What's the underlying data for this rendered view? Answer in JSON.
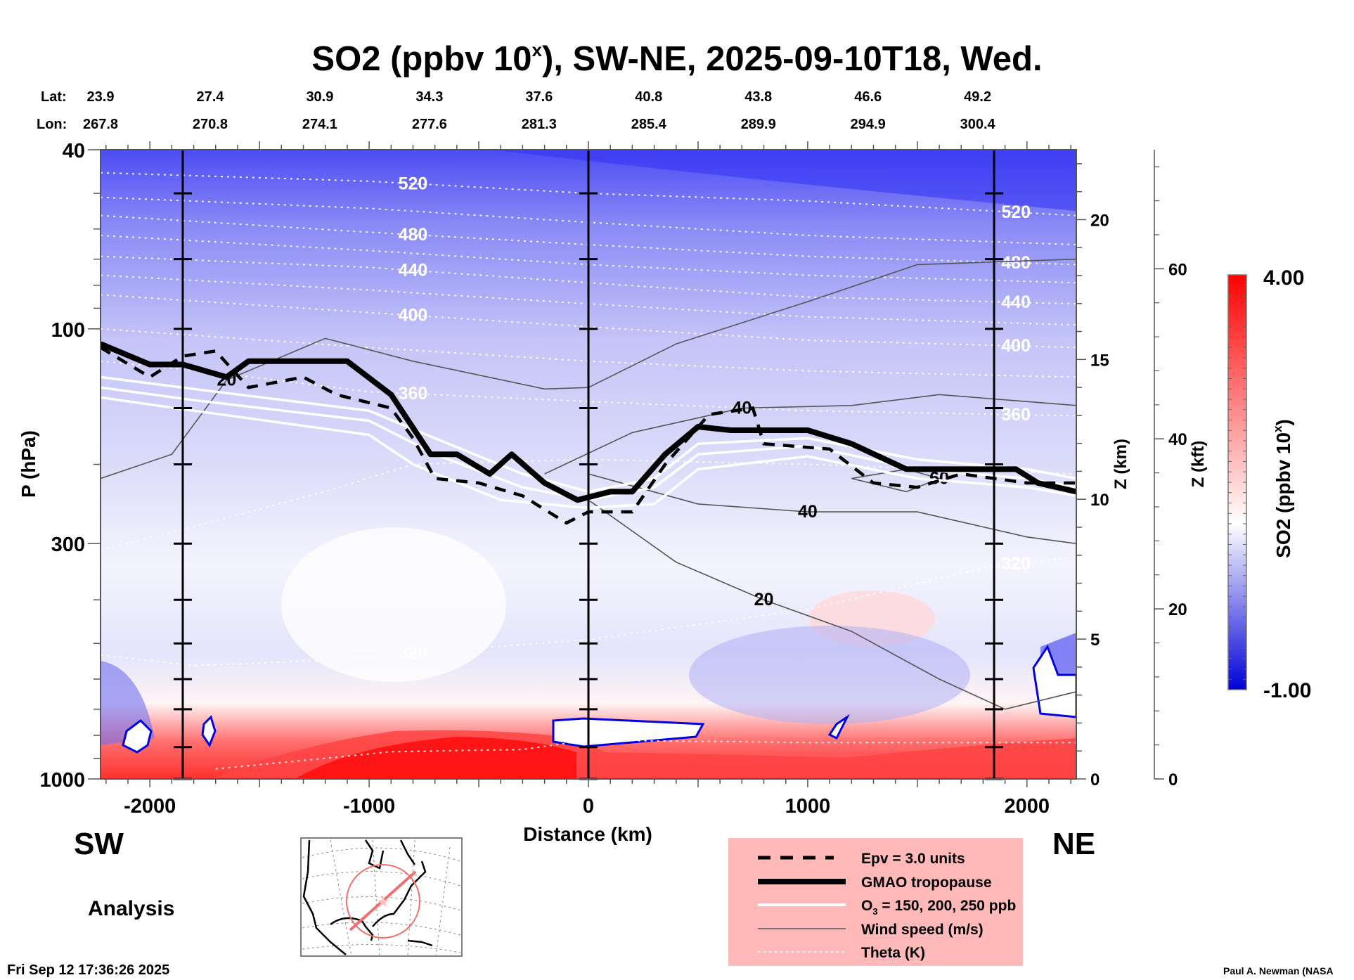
{
  "figure": {
    "title_main": "SO2 (ppbv 10",
    "title_sup": "x",
    "title_rest": "), SW-NE, 2025-09-10T18, Wed.",
    "lat_label": "Lat:",
    "lon_label": "Lon:",
    "left_direction": "SW",
    "right_direction": "NE",
    "run_type": "Analysis",
    "timestamp": "Fri Sep 12 17:36:26 2025",
    "credit": "Paul A. Newman (NASA"
  },
  "legend": {
    "background": "#ffb9b9",
    "items": [
      {
        "label": "Epv = 3.0 units",
        "style": "dashed-thick-black"
      },
      {
        "label": "GMAO tropopause",
        "style": "solid-heavy-black"
      },
      {
        "label_pre": "O",
        "label_sub": "3",
        "label_post": " = 150, 200, 250 ppb",
        "style": "solid-white"
      },
      {
        "label": "Wind speed (m/s)",
        "style": "solid-thin-gray"
      },
      {
        "label": "Theta (K)",
        "style": "dotted-white"
      }
    ]
  },
  "chart_data": {
    "type": "heatmap",
    "title": "SO2 (ppbv 10^x), SW-NE, 2025-09-10T18, Wed.",
    "xlabel": "Distance (km)",
    "ylabel": "P (hPa)",
    "y2label": "Z (km)",
    "y3label": "Z (kft)",
    "colorbar_label": "SO2 (ppbv 10^x)",
    "xlim": [
      -2225,
      2225
    ],
    "ylim": [
      1000,
      40
    ],
    "yscale": "log",
    "x_ticks": [
      -2000,
      -1000,
      0,
      1000,
      2000
    ],
    "x_tick_labels": [
      "-2000",
      "-1000",
      "0",
      "1000",
      "2000"
    ],
    "y_ticks": [
      40,
      100,
      300,
      1000
    ],
    "y_tick_labels": [
      "40",
      "100",
      "300",
      "1000"
    ],
    "z_km_ticks": [
      0,
      5,
      10,
      15,
      20
    ],
    "z_km_range": [
      0,
      22.5
    ],
    "z_kft_ticks": [
      0,
      20,
      40,
      60
    ],
    "z_kft_range": [
      0,
      74
    ],
    "colorbar": {
      "min": -1.0,
      "max": 4.0,
      "min_label": "-1.00",
      "max_label": "4.00",
      "colors": [
        "#0000d8",
        "#ffffff",
        "#ff0000"
      ],
      "levels": 40
    },
    "vertical_markers_km": [
      -1850,
      0,
      1850
    ],
    "latitudes": [
      "23.9",
      "27.4",
      "30.9",
      "34.3",
      "37.6",
      "40.8",
      "43.8",
      "46.6",
      "49.2"
    ],
    "longitudes": [
      "267.8",
      "270.8",
      "274.1",
      "277.6",
      "281.3",
      "285.4",
      "289.9",
      "294.9",
      "300.4"
    ],
    "lat_lon_x_km": [
      -2225,
      -1725,
      -1225,
      -725,
      -225,
      275,
      775,
      1275,
      1775
    ],
    "theta_contours": [
      {
        "value": 520,
        "label": true,
        "points": [
          [
            -2225,
            45
          ],
          [
            -1000,
            47
          ],
          [
            0,
            50
          ],
          [
            1000,
            52
          ],
          [
            2225,
            56
          ]
        ]
      },
      {
        "value": 500,
        "label": false,
        "points": [
          [
            -2225,
            51
          ],
          [
            -1000,
            54
          ],
          [
            0,
            58
          ],
          [
            1000,
            62
          ],
          [
            2225,
            65
          ]
        ]
      },
      {
        "value": 480,
        "label": true,
        "points": [
          [
            -2225,
            56
          ],
          [
            -1000,
            61
          ],
          [
            0,
            65
          ],
          [
            1000,
            69
          ],
          [
            2225,
            72
          ]
        ]
      },
      {
        "value": 460,
        "label": false,
        "points": [
          [
            -2225,
            62
          ],
          [
            -1000,
            67
          ],
          [
            0,
            72
          ],
          [
            1000,
            76
          ],
          [
            2225,
            79
          ]
        ]
      },
      {
        "value": 440,
        "label": true,
        "points": [
          [
            -2225,
            69
          ],
          [
            -1000,
            73
          ],
          [
            0,
            79
          ],
          [
            1000,
            85
          ],
          [
            2225,
            88
          ]
        ]
      },
      {
        "value": 420,
        "label": false,
        "points": [
          [
            -2225,
            76
          ],
          [
            -1000,
            82
          ],
          [
            0,
            88
          ],
          [
            1000,
            94
          ],
          [
            2225,
            98
          ]
        ]
      },
      {
        "value": 400,
        "label": true,
        "points": [
          [
            -2225,
            84
          ],
          [
            -1000,
            92
          ],
          [
            0,
            99
          ],
          [
            1000,
            106
          ],
          [
            2225,
            110
          ]
        ]
      },
      {
        "value": 380,
        "label": false,
        "points": [
          [
            -2225,
            100
          ],
          [
            -1000,
            110
          ],
          [
            0,
            118
          ],
          [
            1000,
            124
          ],
          [
            2225,
            128
          ]
        ]
      },
      {
        "value": 360,
        "label": true,
        "points": [
          [
            -2225,
            118
          ],
          [
            -1700,
            125
          ],
          [
            -1000,
            138
          ],
          [
            0,
            145
          ],
          [
            1000,
            152
          ],
          [
            2225,
            156
          ]
        ]
      },
      {
        "value": 340,
        "label": false,
        "points": [
          [
            -2225,
            310
          ],
          [
            -1800,
            275
          ],
          [
            -1200,
            230
          ],
          [
            -800,
            200
          ],
          [
            0,
            195
          ],
          [
            1000,
            200
          ],
          [
            2225,
            210
          ]
        ]
      },
      {
        "value": 320,
        "label": true,
        "points": [
          [
            -2225,
            530
          ],
          [
            -1800,
            560
          ],
          [
            -1200,
            545
          ],
          [
            -700,
            520
          ],
          [
            0,
            490
          ],
          [
            1000,
            420
          ],
          [
            1800,
            340
          ],
          [
            2225,
            320
          ]
        ]
      },
      {
        "value": 300,
        "label": false,
        "points": [
          [
            -1700,
            950
          ],
          [
            -1200,
            900
          ],
          [
            -900,
            870
          ],
          [
            -300,
            860
          ],
          [
            0,
            820
          ],
          [
            1000,
            830
          ],
          [
            2225,
            830
          ]
        ]
      }
    ],
    "wind_speed_contours": [
      {
        "value": 20,
        "label": true,
        "points": [
          [
            -2225,
            215
          ],
          [
            -1900,
            190
          ],
          [
            -1650,
            130
          ],
          [
            -1200,
            105
          ],
          [
            -800,
            118
          ],
          [
            -200,
            136
          ],
          [
            0,
            135
          ],
          [
            400,
            108
          ],
          [
            1000,
            87
          ],
          [
            1500,
            72
          ],
          [
            2225,
            70
          ]
        ]
      },
      {
        "value": 40,
        "label": true,
        "points": [
          [
            -200,
            210
          ],
          [
            200,
            170
          ],
          [
            700,
            150
          ],
          [
            1200,
            148
          ],
          [
            1600,
            140
          ],
          [
            2225,
            148
          ]
        ]
      },
      {
        "value": 40,
        "label": true,
        "points": [
          [
            0,
            210
          ],
          [
            500,
            245
          ],
          [
            1000,
            255
          ],
          [
            1500,
            255
          ],
          [
            2000,
            290
          ],
          [
            2225,
            300
          ]
        ]
      },
      {
        "value": 20,
        "label": true,
        "points": [
          [
            0,
            240
          ],
          [
            400,
            330
          ],
          [
            800,
            400
          ],
          [
            1200,
            470
          ],
          [
            1600,
            600
          ],
          [
            1900,
            700
          ],
          [
            2225,
            640
          ]
        ]
      },
      {
        "value": 60,
        "label": true,
        "points": [
          [
            1200,
            215
          ],
          [
            1450,
            205
          ],
          [
            1600,
            215
          ],
          [
            1450,
            230
          ],
          [
            1200,
            215
          ]
        ]
      }
    ],
    "tropopause_hPa": [
      [
        -2225,
        108
      ],
      [
        -2000,
        120
      ],
      [
        -1850,
        120
      ],
      [
        -1650,
        128
      ],
      [
        -1550,
        118
      ],
      [
        -1100,
        118
      ],
      [
        -900,
        140
      ],
      [
        -720,
        190
      ],
      [
        -600,
        190
      ],
      [
        -450,
        210
      ],
      [
        -350,
        190
      ],
      [
        -200,
        220
      ],
      [
        -50,
        240
      ],
      [
        100,
        230
      ],
      [
        200,
        230
      ],
      [
        350,
        190
      ],
      [
        500,
        165
      ],
      [
        650,
        168
      ],
      [
        1000,
        168
      ],
      [
        1200,
        180
      ],
      [
        1450,
        205
      ],
      [
        1950,
        205
      ],
      [
        2050,
        220
      ],
      [
        2225,
        230
      ]
    ],
    "epv_3_hPa": [
      [
        -2225,
        110
      ],
      [
        -2000,
        128
      ],
      [
        -1850,
        115
      ],
      [
        -1700,
        112
      ],
      [
        -1550,
        135
      ],
      [
        -1300,
        128
      ],
      [
        -1150,
        140
      ],
      [
        -900,
        150
      ],
      [
        -800,
        175
      ],
      [
        -700,
        215
      ],
      [
        -500,
        220
      ],
      [
        -300,
        235
      ],
      [
        -100,
        270
      ],
      [
        0,
        255
      ],
      [
        200,
        255
      ],
      [
        350,
        200
      ],
      [
        550,
        155
      ],
      [
        750,
        150
      ],
      [
        800,
        180
      ],
      [
        1100,
        185
      ],
      [
        1300,
        220
      ],
      [
        1500,
        225
      ],
      [
        1700,
        210
      ],
      [
        2000,
        220
      ],
      [
        2225,
        220
      ]
    ],
    "o3_contours_hPa": [
      {
        "value": 250,
        "points": [
          [
            -2225,
            128
          ],
          [
            -1800,
            136
          ],
          [
            -1000,
            152
          ],
          [
            -700,
            175
          ],
          [
            -300,
            210
          ],
          [
            0,
            230
          ],
          [
            300,
            215
          ],
          [
            500,
            180
          ],
          [
            1000,
            175
          ],
          [
            1500,
            195
          ],
          [
            2000,
            205
          ],
          [
            2225,
            215
          ]
        ]
      },
      {
        "value": 200,
        "points": [
          [
            -2225,
            135
          ],
          [
            -1800,
            144
          ],
          [
            -1000,
            160
          ],
          [
            -700,
            190
          ],
          [
            -300,
            225
          ],
          [
            0,
            240
          ],
          [
            300,
            225
          ],
          [
            500,
            190
          ],
          [
            1000,
            182
          ],
          [
            1500,
            205
          ],
          [
            2000,
            215
          ],
          [
            2225,
            225
          ]
        ]
      },
      {
        "value": 150,
        "points": [
          [
            -2225,
            142
          ],
          [
            -1800,
            152
          ],
          [
            -1000,
            172
          ],
          [
            -800,
            200
          ],
          [
            -400,
            240
          ],
          [
            0,
            250
          ],
          [
            300,
            245
          ],
          [
            500,
            205
          ],
          [
            1000,
            192
          ],
          [
            1500,
            215
          ],
          [
            2000,
            225
          ],
          [
            2225,
            235
          ]
        ]
      }
    ]
  }
}
